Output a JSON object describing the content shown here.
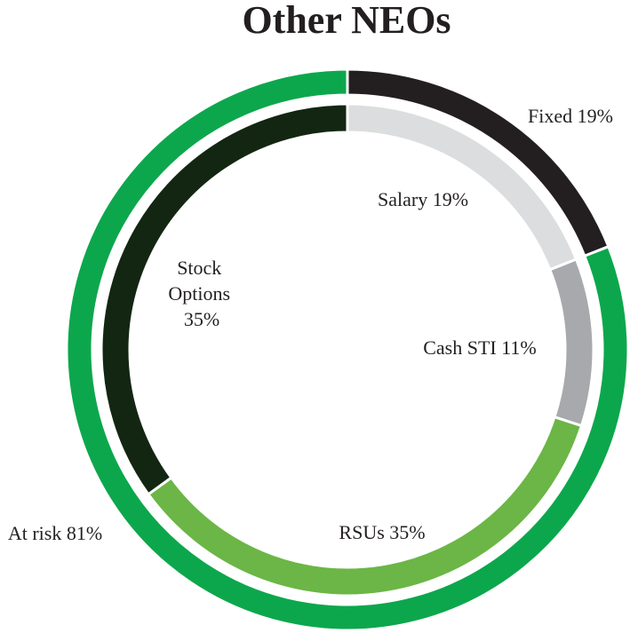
{
  "chart_data": {
    "type": "pie",
    "title": "Other NEOs",
    "outer_ring": {
      "slices": [
        {
          "label": "Fixed 19%",
          "value": 19,
          "color": "#231f20"
        },
        {
          "label": "At risk 81%",
          "value": 81,
          "color": "#0ca74c"
        }
      ]
    },
    "inner_ring": {
      "slices": [
        {
          "label": "Salary 19%",
          "value": 19,
          "color": "#dcddde"
        },
        {
          "label": "Cash STI 11%",
          "value": 11,
          "color": "#a7a9ac"
        },
        {
          "label": "RSUs 35%",
          "value": 35,
          "color": "#6bb646"
        },
        {
          "label": "Stock Options 35%",
          "value": 35,
          "color": "#132612",
          "lines": [
            "Stock",
            "Options",
            "35%"
          ]
        }
      ]
    }
  }
}
